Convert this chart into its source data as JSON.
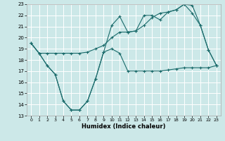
{
  "xlabel": "Humidex (Indice chaleur)",
  "xlim": [
    -0.5,
    23.5
  ],
  "ylim": [
    13,
    23
  ],
  "xticks": [
    0,
    1,
    2,
    3,
    4,
    5,
    6,
    7,
    8,
    9,
    10,
    11,
    12,
    13,
    14,
    15,
    16,
    17,
    18,
    19,
    20,
    21,
    22,
    23
  ],
  "yticks": [
    13,
    14,
    15,
    16,
    17,
    18,
    19,
    20,
    21,
    22,
    23
  ],
  "background_color": "#cce8e8",
  "grid_color": "#ffffff",
  "line_color": "#1a6b6b",
  "line1_y": [
    19.5,
    18.6,
    18.6,
    18.6,
    18.6,
    18.6,
    18.6,
    18.7,
    19.0,
    19.3,
    20.0,
    20.5,
    20.5,
    20.6,
    21.1,
    21.8,
    22.2,
    22.3,
    22.5,
    23.0,
    22.9,
    21.1,
    18.9,
    17.5
  ],
  "line2_y": [
    19.5,
    18.6,
    17.5,
    16.7,
    14.3,
    13.5,
    13.5,
    14.3,
    16.3,
    18.7,
    21.1,
    21.9,
    20.5,
    20.6,
    22.0,
    22.0,
    21.6,
    22.3,
    22.5,
    23.0,
    22.2,
    21.1,
    18.9,
    17.5
  ],
  "line3_y": [
    19.5,
    18.6,
    17.5,
    16.7,
    14.3,
    13.5,
    13.5,
    14.3,
    16.3,
    18.7,
    19.0,
    18.6,
    17.0,
    17.0,
    17.0,
    17.0,
    17.0,
    17.1,
    17.2,
    17.3,
    17.3,
    17.3,
    17.3,
    17.5
  ]
}
